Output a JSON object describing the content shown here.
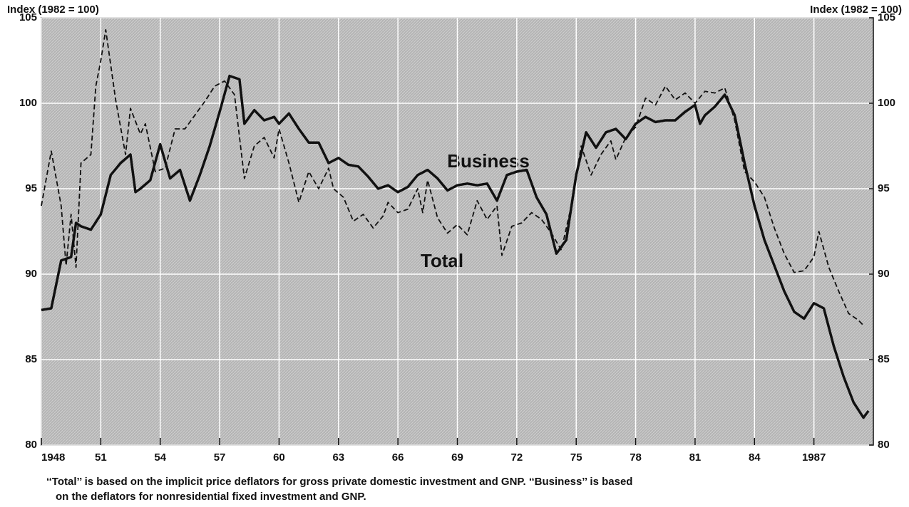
{
  "chart_data": {
    "type": "line",
    "ylabel": "Index (1982 = 100)",
    "y2label": "Index (1982 = 100)",
    "xlim": [
      1948,
      1990
    ],
    "xticks": [
      1948,
      {
        "value": 1951,
        "label": "51"
      },
      {
        "value": 1954,
        "label": "54"
      },
      {
        "value": 1957,
        "label": "57"
      },
      {
        "value": 1960,
        "label": "60"
      },
      {
        "value": 1963,
        "label": "63"
      },
      {
        "value": 1966,
        "label": "66"
      },
      {
        "value": 1969,
        "label": "69"
      },
      {
        "value": 1972,
        "label": "72"
      },
      {
        "value": 1975,
        "label": "75"
      },
      {
        "value": 1978,
        "label": "78"
      },
      {
        "value": 1981,
        "label": "81"
      },
      {
        "value": 1984,
        "label": "84"
      },
      1987
    ],
    "ylim": [
      80,
      105
    ],
    "yticks": [
      80,
      85,
      90,
      95,
      100,
      105
    ],
    "y2lim": [
      80,
      105
    ],
    "y2ticks": [
      80,
      85,
      90,
      95,
      100,
      105
    ],
    "grid": true,
    "annotations": [
      "Business",
      "Total"
    ],
    "note": [
      "‘‘Total’’ is based on the implicit price deflators for gross private domestic investment and GNP. ‘‘Business’’ is based",
      "on the deflators for nonresidential fixed investment and GNP."
    ],
    "series": [
      {
        "name": "Business",
        "color": "#111111",
        "dash": false,
        "x": [
          1948.0,
          1948.5,
          1949.0,
          1949.5,
          1949.75,
          1950.0,
          1950.5,
          1951.0,
          1951.5,
          1952.0,
          1952.5,
          1952.75,
          1953.0,
          1953.5,
          1954.0,
          1954.5,
          1955.0,
          1955.5,
          1956.0,
          1956.5,
          1957.0,
          1957.5,
          1958.0,
          1958.25,
          1958.75,
          1959.25,
          1959.75,
          1960.0,
          1960.5,
          1961.0,
          1961.5,
          1962.0,
          1962.5,
          1963.0,
          1963.5,
          1964.0,
          1964.5,
          1965.0,
          1965.5,
          1966.0,
          1966.5,
          1967.0,
          1967.5,
          1968.0,
          1968.5,
          1969.0,
          1969.5,
          1970.0,
          1970.5,
          1971.0,
          1971.5,
          1972.0,
          1972.5,
          1973.0,
          1973.5,
          1974.0,
          1974.5,
          1975.0,
          1975.5,
          1976.0,
          1976.5,
          1977.0,
          1977.5,
          1978.0,
          1978.5,
          1979.0,
          1979.5,
          1980.0,
          1980.5,
          1981.0,
          1981.25,
          1981.5,
          1982.0,
          1982.5,
          1983.0,
          1983.5,
          1984.0,
          1984.5,
          1985.0,
          1985.5,
          1986.0,
          1986.5,
          1987.0,
          1987.5,
          1988.0,
          1988.5,
          1989.0,
          1989.5,
          1989.75
        ],
        "values": [
          87.9,
          88.0,
          90.8,
          91.0,
          93.0,
          92.8,
          92.6,
          93.5,
          95.8,
          96.5,
          97.0,
          94.8,
          95.0,
          95.5,
          97.6,
          95.6,
          96.1,
          94.3,
          95.8,
          97.5,
          99.5,
          101.6,
          101.4,
          98.8,
          99.6,
          99.0,
          99.2,
          98.8,
          99.4,
          98.5,
          97.7,
          97.7,
          96.5,
          96.8,
          96.4,
          96.3,
          95.7,
          95.0,
          95.2,
          94.8,
          95.1,
          95.8,
          96.1,
          95.6,
          94.9,
          95.2,
          95.3,
          95.2,
          95.3,
          94.3,
          95.8,
          96.0,
          96.1,
          94.5,
          93.5,
          91.2,
          92.0,
          95.8,
          98.3,
          97.4,
          98.3,
          98.5,
          97.9,
          98.8,
          99.2,
          98.9,
          99.0,
          99.0,
          99.5,
          99.9,
          98.8,
          99.3,
          99.8,
          100.5,
          99.3,
          96.5,
          94.0,
          92.0,
          90.5,
          89.0,
          87.8,
          87.4,
          88.3,
          88.0,
          85.8,
          84.0,
          82.5,
          81.6,
          82.0
        ]
      },
      {
        "name": "Total",
        "color": "#111111",
        "dash": true,
        "x": [
          1948.0,
          1948.5,
          1949.0,
          1949.25,
          1949.5,
          1949.75,
          1950.0,
          1950.5,
          1950.75,
          1951.0,
          1951.25,
          1951.75,
          1952.25,
          1952.5,
          1953.0,
          1953.25,
          1953.75,
          1954.25,
          1954.75,
          1955.25,
          1955.75,
          1956.25,
          1956.75,
          1957.25,
          1957.75,
          1958.25,
          1958.75,
          1959.25,
          1959.75,
          1960.0,
          1960.5,
          1961.0,
          1961.5,
          1962.0,
          1962.5,
          1962.75,
          1963.25,
          1963.75,
          1964.25,
          1964.75,
          1965.25,
          1965.5,
          1966.0,
          1966.5,
          1967.0,
          1967.25,
          1967.5,
          1968.0,
          1968.5,
          1969.0,
          1969.5,
          1970.0,
          1970.5,
          1971.0,
          1971.25,
          1971.75,
          1972.25,
          1972.75,
          1973.25,
          1973.75,
          1974.25,
          1974.75,
          1975.25,
          1975.75,
          1976.25,
          1976.75,
          1977.0,
          1977.5,
          1978.0,
          1978.5,
          1979.0,
          1979.5,
          1980.0,
          1980.5,
          1981.0,
          1981.5,
          1982.0,
          1982.5,
          1983.0,
          1983.5,
          1984.0,
          1984.5,
          1985.0,
          1985.5,
          1986.0,
          1986.5,
          1987.0,
          1987.25,
          1987.75,
          1988.25,
          1988.75,
          1989.25,
          1989.5
        ],
        "values": [
          94.0,
          97.2,
          94.0,
          90.5,
          93.5,
          90.4,
          96.5,
          97.0,
          101.0,
          102.5,
          104.3,
          100.2,
          97.0,
          99.7,
          98.2,
          98.8,
          96.0,
          96.2,
          98.5,
          98.5,
          99.3,
          100.1,
          101.0,
          101.3,
          100.5,
          95.6,
          97.5,
          98.0,
          96.8,
          98.5,
          96.5,
          94.2,
          96.0,
          95.0,
          96.2,
          95.0,
          94.5,
          93.1,
          93.5,
          92.7,
          93.4,
          94.2,
          93.6,
          93.8,
          95.0,
          93.6,
          95.5,
          93.3,
          92.4,
          92.9,
          92.3,
          94.3,
          93.2,
          94.0,
          91.1,
          92.8,
          93.0,
          93.6,
          93.2,
          92.4,
          91.4,
          94.0,
          97.5,
          95.8,
          97.0,
          97.8,
          96.7,
          98.0,
          98.6,
          100.3,
          99.9,
          101.0,
          100.2,
          100.6,
          100.0,
          100.7,
          100.6,
          100.9,
          99.0,
          96.0,
          95.4,
          94.5,
          92.7,
          91.2,
          90.1,
          90.2,
          91.0,
          92.5,
          90.4,
          89.0,
          87.7,
          87.3,
          87.0
        ]
      }
    ]
  }
}
